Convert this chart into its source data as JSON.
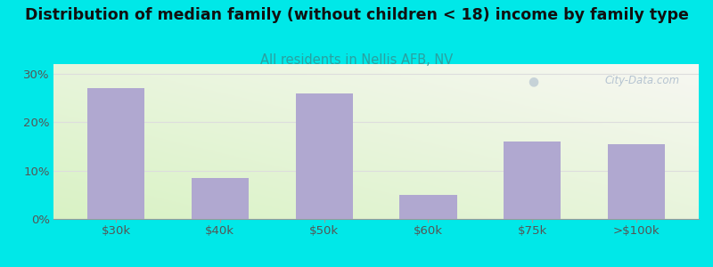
{
  "categories": [
    "$30k",
    "$40k",
    "$50k",
    "$60k",
    "$75k",
    ">$100k"
  ],
  "values": [
    27.0,
    8.5,
    26.0,
    5.0,
    16.0,
    15.5
  ],
  "bar_color": "#b0a8d0",
  "title": "Distribution of median family (without children < 18) income by family type",
  "subtitle": "All residents in Nellis AFB, NV",
  "subtitle_color": "#2aa0a0",
  "title_fontsize": 12.5,
  "subtitle_fontsize": 10.5,
  "ylabel_ticks": [
    "0%",
    "10%",
    "20%",
    "30%"
  ],
  "yticks": [
    0,
    10,
    20,
    30
  ],
  "ylim": [
    0,
    32
  ],
  "background_color": "#00e8e8",
  "watermark": "City-Data.com",
  "grid_color": "#dddddd",
  "tick_color": "#555555"
}
